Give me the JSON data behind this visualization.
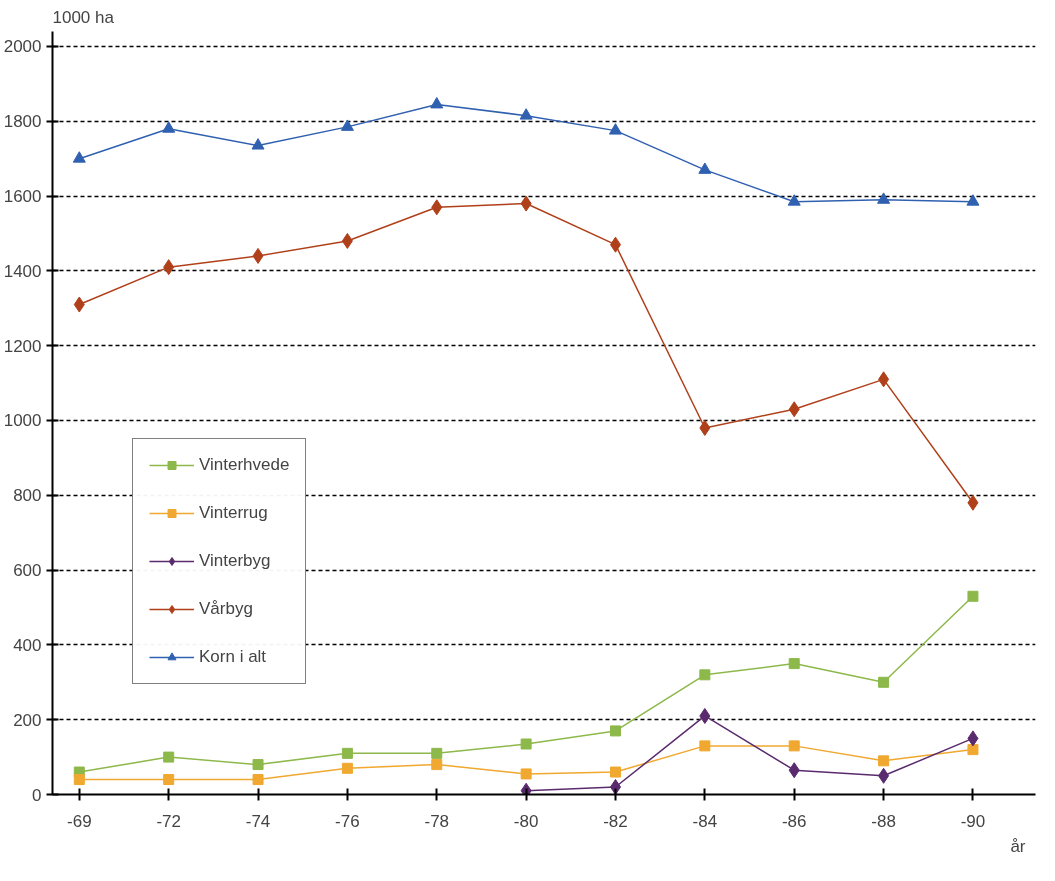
{
  "chart_data": {
    "type": "line",
    "ylabel": "1000 ha",
    "xlabel": "år",
    "categories": [
      "-69",
      "-72",
      "-74",
      "-76",
      "-78",
      "-80",
      "-82",
      "-84",
      "-86",
      "-88",
      "-90"
    ],
    "ylim": [
      0,
      2000
    ],
    "yticks": [
      0,
      200,
      400,
      600,
      800,
      1000,
      1200,
      1400,
      1600,
      1800,
      2000
    ],
    "grid": "y",
    "legend": "left",
    "series": [
      {
        "name": "Vinterhvede",
        "color": "#8db84a",
        "marker": "square",
        "values": [
          60,
          100,
          80,
          110,
          110,
          135,
          170,
          320,
          350,
          300,
          530
        ]
      },
      {
        "name": "Vinterrug",
        "color": "#f0a830",
        "marker": "square",
        "values": [
          40,
          40,
          40,
          70,
          80,
          55,
          60,
          130,
          130,
          90,
          120
        ]
      },
      {
        "name": "Vinterbyg",
        "color": "#5a2a6e",
        "marker": "diamond",
        "values": [
          null,
          null,
          null,
          null,
          null,
          10,
          20,
          210,
          65,
          50,
          150
        ]
      },
      {
        "name": "Vårbyg",
        "color": "#b0401a",
        "marker": "diamond",
        "values": [
          1310,
          1410,
          1440,
          1480,
          1570,
          1580,
          1470,
          980,
          1030,
          1110,
          780
        ]
      },
      {
        "name": "Korn i alt",
        "color": "#3060b0",
        "marker": "triangle",
        "values": [
          1700,
          1780,
          1735,
          1785,
          1845,
          1815,
          1775,
          1670,
          1585,
          1590,
          1585
        ]
      }
    ]
  }
}
